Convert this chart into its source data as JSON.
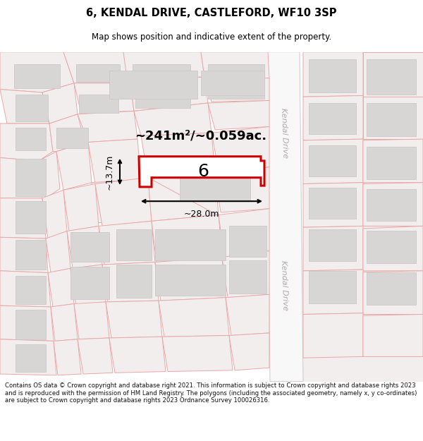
{
  "title": "6, KENDAL DRIVE, CASTLEFORD, WF10 3SP",
  "subtitle": "Map shows position and indicative extent of the property.",
  "footer": "Contains OS data © Crown copyright and database right 2021. This information is subject to Crown copyright and database rights 2023 and is reproduced with the permission of HM Land Registry. The polygons (including the associated geometry, namely x, y co-ordinates) are subject to Crown copyright and database rights 2023 Ordnance Survey 100026316.",
  "map_bg": "#f7f5f5",
  "plot_fill": "#f2eeee",
  "plot_edge": "#e8a8a8",
  "bldg_fill": "#d8d5d5",
  "bldg_edge": "#c8c5c5",
  "road_fill": "#f0eded",
  "road_edge": "#d0c8c8",
  "highlight_color": "#cc0000",
  "title_color": "#000000",
  "area_text": "~241m²/~0.059ac.",
  "number_label": "6",
  "dim_width": "~28.0m",
  "dim_height": "~13.7m",
  "road_label": "Kendal Drive",
  "road_label_color": "#b0aaaa"
}
